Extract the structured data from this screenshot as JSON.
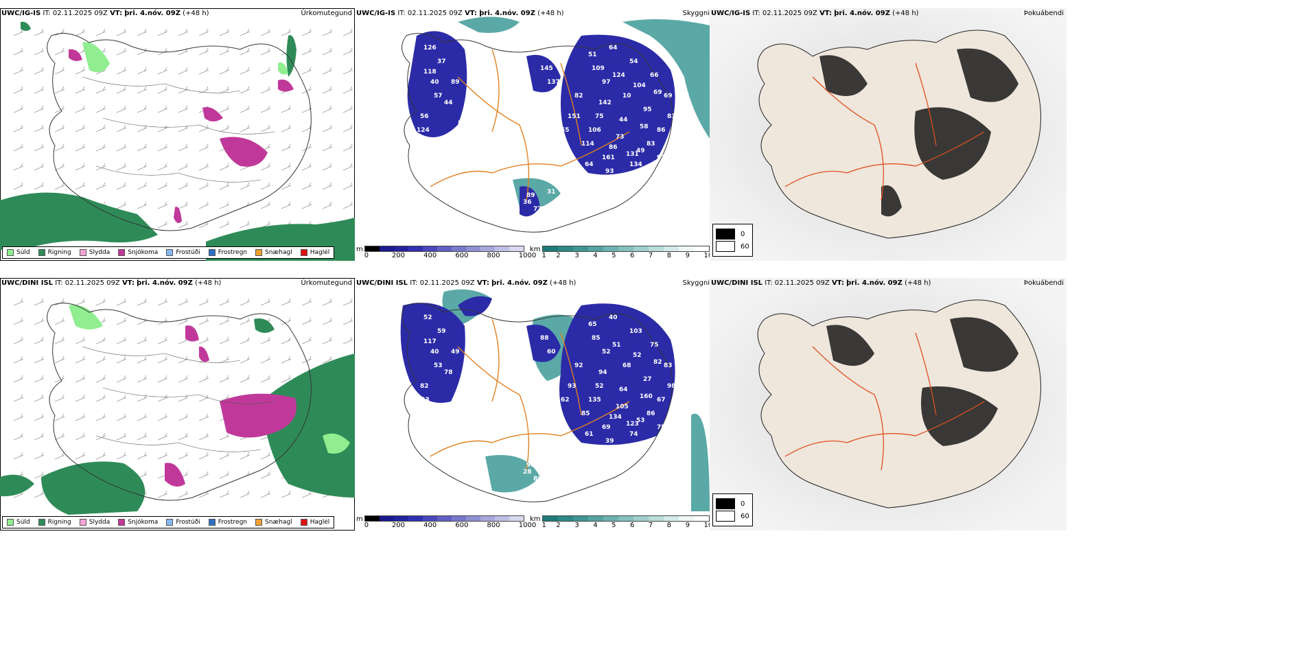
{
  "rows": [
    {
      "left": {
        "title_model": "UWC/IG-IS",
        "title_it_label": "IT:",
        "title_it": "02.11.2025 09Z",
        "title_vt_label": "VT:",
        "title_vt": "þri. 4.nóv. 09Z",
        "title_lead": "(+48 h)",
        "variable": "Úrkomutegund"
      },
      "middle": {
        "title_model": "UWC/IG-IS",
        "title_it_label": "IT:",
        "title_it": "02.11.2025 09Z",
        "title_vt_label": "VT:",
        "title_vt": "þri. 4.nóv. 09Z",
        "title_lead": "(+48 h)",
        "variable": "Skyggni",
        "ceiling_labels": [
          "126",
          "37",
          "40",
          "44",
          "56",
          "50",
          "51",
          "64",
          "54",
          "66",
          "97",
          "10",
          "95",
          "75",
          "73",
          "49",
          "86",
          "114",
          "161",
          "134",
          "145",
          "137",
          "89",
          "77",
          "69",
          "82",
          "109",
          "124",
          "104",
          "69",
          "142",
          "44",
          "58",
          "106",
          "86",
          "131",
          "83",
          "151",
          "64",
          "93",
          "89",
          "57",
          "118",
          "124",
          "115",
          "83",
          "91",
          "55",
          "31",
          "36"
        ]
      },
      "right": {
        "title_model": "UWC/IG-IS",
        "title_it_label": "IT:",
        "title_it": "02.11.2025 09Z",
        "title_vt_label": "VT:",
        "title_vt": "þri. 4.nóv. 09Z",
        "title_lead": "(+48 h)",
        "variable": "Þokuábendi",
        "legend_low": "0",
        "legend_high": "60"
      }
    },
    {
      "left": {
        "title_model": "UWC/DINI ISL",
        "title_it_label": "IT:",
        "title_it": "02.11.2025 09Z",
        "title_vt_label": "VT:",
        "title_vt": "þri. 4.nóv. 09Z",
        "title_lead": "(+48 h)",
        "variable": "Úrkomutegund"
      },
      "middle": {
        "title_model": "UWC/DINI ISL",
        "title_it_label": "IT:",
        "title_it": "02.11.2025 09Z",
        "title_vt_label": "VT:",
        "title_vt": "þri. 4.nóv. 09Z",
        "title_lead": "(+48 h)",
        "variable": "Skyggni",
        "ceiling_labels": [
          "52",
          "59",
          "40",
          "78",
          "82",
          "66",
          "65",
          "40",
          "103",
          "75",
          "52",
          "68",
          "27",
          "52",
          "105",
          "53",
          "67",
          "85",
          "69",
          "74",
          "88",
          "60",
          "98",
          "86",
          "83",
          "92",
          "85",
          "51",
          "52",
          "82",
          "94",
          "64",
          "160",
          "135",
          "134",
          "123",
          "86",
          "93",
          "61",
          "39",
          "49",
          "53",
          "117",
          "143",
          "102",
          "98",
          "75",
          "62",
          "84",
          "28"
        ]
      },
      "right": {
        "title_model": "UWC/DINI ISL",
        "title_it_label": "IT:",
        "title_it": "02.11.2025 09Z",
        "title_vt_label": "VT:",
        "title_vt": "þri. 4.nóv. 09Z",
        "title_lead": "(+48 h)",
        "variable": "Þokuábendi",
        "legend_low": "0",
        "legend_high": "60"
      }
    }
  ],
  "precip_legend": [
    {
      "label": "Súld",
      "color": "#90ee90"
    },
    {
      "label": "Rigning",
      "color": "#2e8b57"
    },
    {
      "label": "Slydda",
      "color": "#f4a6d7"
    },
    {
      "label": "Snjókoma",
      "color": "#c0399a"
    },
    {
      "label": "Frostúði",
      "color": "#87b9ef"
    },
    {
      "label": "Frostregn",
      "color": "#2f6fc4"
    },
    {
      "label": "Snæhagl",
      "color": "#f0a030"
    },
    {
      "label": "Haglél",
      "color": "#e01010"
    }
  ],
  "ceiling_bar": {
    "unit": "m",
    "ticks": [
      "0",
      "200",
      "400",
      "600",
      "800",
      "1000"
    ],
    "colors": [
      "#000000",
      "#1a1a8c",
      "#23239e",
      "#3030b0",
      "#4848bb",
      "#6060c4",
      "#7878cc",
      "#9090d4",
      "#a8a8dd",
      "#c0c0e6",
      "#d8d8f0"
    ]
  },
  "visibility_bar": {
    "unit": "km",
    "ticks": [
      "1",
      "2",
      "3",
      "4",
      "5",
      "6",
      "7",
      "8",
      "9",
      "10"
    ],
    "colors": [
      "#1e7a78",
      "#2d8886",
      "#3e9694",
      "#54a4a2",
      "#6cb2b0",
      "#86c1bf",
      "#a0cfcd",
      "#badddb",
      "#d4ebea",
      "#eef8f7",
      "#ffffff"
    ]
  },
  "colors": {
    "rain": "#2e8b57",
    "drizzle": "#90ee90",
    "snow": "#c0399a",
    "ceiling": "#2b2ba8",
    "vis": "#3d9a97",
    "roads": "#e08020",
    "fog_dark": "#111111",
    "land_light": "#efe6dc"
  }
}
